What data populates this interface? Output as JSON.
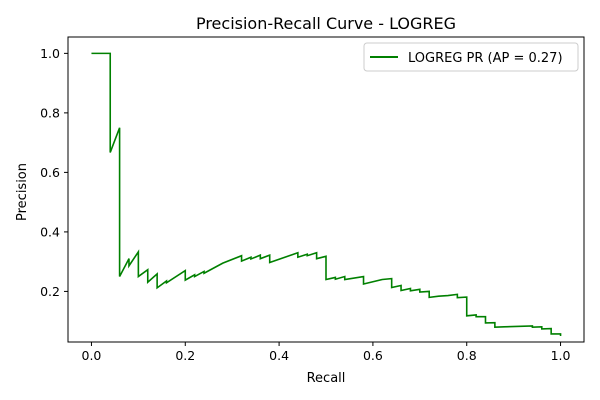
{
  "chart_data": {
    "type": "line",
    "title": "Precision-Recall Curve - LOGREG",
    "xlabel": "Recall",
    "ylabel": "Precision",
    "xlim": [
      -0.05,
      1.05
    ],
    "ylim": [
      0.03,
      1.055
    ],
    "xticks": [
      0.0,
      0.2,
      0.4,
      0.6,
      0.8,
      1.0
    ],
    "yticks": [
      0.2,
      0.4,
      0.6,
      0.8,
      1.0
    ],
    "xtick_labels": [
      "0.0",
      "0.2",
      "0.4",
      "0.6",
      "0.8",
      "1.0"
    ],
    "ytick_labels": [
      "0.2",
      "0.4",
      "0.6",
      "0.8",
      "1.0"
    ],
    "grid": false,
    "legend": {
      "position": "top-right"
    },
    "series": [
      {
        "name": "LOGREG PR (AP = 0.27)",
        "color": "#008000",
        "points": [
          [
            0.0,
            1.0
          ],
          [
            0.04,
            1.0
          ],
          [
            0.04,
            0.667
          ],
          [
            0.06,
            0.75
          ],
          [
            0.06,
            0.25
          ],
          [
            0.08,
            0.31
          ],
          [
            0.08,
            0.286
          ],
          [
            0.1,
            0.333
          ],
          [
            0.1,
            0.25
          ],
          [
            0.12,
            0.273
          ],
          [
            0.12,
            0.231
          ],
          [
            0.14,
            0.259
          ],
          [
            0.14,
            0.212
          ],
          [
            0.16,
            0.235
          ],
          [
            0.16,
            0.229
          ],
          [
            0.2,
            0.27
          ],
          [
            0.2,
            0.238
          ],
          [
            0.22,
            0.256
          ],
          [
            0.22,
            0.25
          ],
          [
            0.24,
            0.267
          ],
          [
            0.24,
            0.261
          ],
          [
            0.28,
            0.295
          ],
          [
            0.32,
            0.32
          ],
          [
            0.32,
            0.302
          ],
          [
            0.34,
            0.315
          ],
          [
            0.34,
            0.309
          ],
          [
            0.36,
            0.322
          ],
          [
            0.36,
            0.31
          ],
          [
            0.38,
            0.322
          ],
          [
            0.38,
            0.297
          ],
          [
            0.44,
            0.33
          ],
          [
            0.44,
            0.315
          ],
          [
            0.46,
            0.325
          ],
          [
            0.46,
            0.32
          ],
          [
            0.48,
            0.33
          ],
          [
            0.48,
            0.31
          ],
          [
            0.5,
            0.318
          ],
          [
            0.5,
            0.24
          ],
          [
            0.52,
            0.247
          ],
          [
            0.52,
            0.241
          ],
          [
            0.54,
            0.25
          ],
          [
            0.54,
            0.24
          ],
          [
            0.58,
            0.25
          ],
          [
            0.58,
            0.225
          ],
          [
            0.62,
            0.24
          ],
          [
            0.64,
            0.243
          ],
          [
            0.64,
            0.213
          ],
          [
            0.66,
            0.22
          ],
          [
            0.66,
            0.203
          ],
          [
            0.68,
            0.21
          ],
          [
            0.68,
            0.202
          ],
          [
            0.7,
            0.207
          ],
          [
            0.7,
            0.198
          ],
          [
            0.72,
            0.2
          ],
          [
            0.72,
            0.18
          ],
          [
            0.74,
            0.184
          ],
          [
            0.76,
            0.186
          ],
          [
            0.78,
            0.19
          ],
          [
            0.78,
            0.179
          ],
          [
            0.8,
            0.181
          ],
          [
            0.8,
            0.118
          ],
          [
            0.82,
            0.121
          ],
          [
            0.82,
            0.115
          ],
          [
            0.84,
            0.115
          ],
          [
            0.84,
            0.094
          ],
          [
            0.86,
            0.095
          ],
          [
            0.86,
            0.08
          ],
          [
            0.88,
            0.081
          ],
          [
            0.94,
            0.084
          ],
          [
            0.94,
            0.08
          ],
          [
            0.96,
            0.081
          ],
          [
            0.96,
            0.074
          ],
          [
            0.98,
            0.075
          ],
          [
            0.98,
            0.057
          ],
          [
            1.0,
            0.057
          ],
          [
            1.0,
            0.05
          ]
        ]
      }
    ]
  }
}
